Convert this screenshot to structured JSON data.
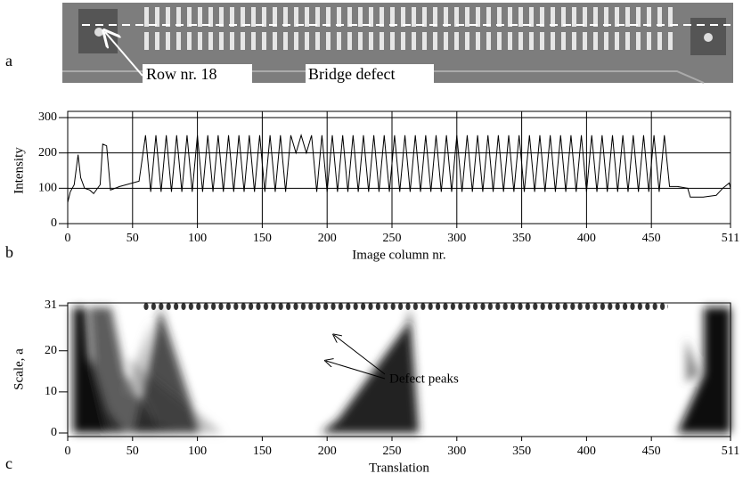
{
  "panel_labels": [
    "a",
    "b",
    "c"
  ],
  "image": {
    "annotations": [
      "Row nr. 18",
      "Bridge defect"
    ]
  },
  "chart_data": [
    {
      "type": "line",
      "ylabel": "Intensity",
      "xlabel": "Image column nr.",
      "color": "#000000",
      "grid": true,
      "xlim": [
        0,
        511
      ],
      "ylim": [
        0,
        300
      ],
      "xticks": [
        0,
        50,
        100,
        150,
        200,
        250,
        300,
        350,
        400,
        450,
        511
      ],
      "yticks": [
        0,
        100,
        200,
        300
      ],
      "x": [
        0,
        2,
        5,
        8,
        10,
        13,
        17,
        20,
        25,
        27,
        30,
        33,
        40,
        45,
        50,
        55,
        60,
        64,
        68,
        72,
        76,
        80,
        84,
        88,
        92,
        96,
        100,
        104,
        108,
        112,
        116,
        120,
        124,
        128,
        132,
        136,
        140,
        144,
        148,
        152,
        156,
        160,
        164,
        168,
        172,
        176,
        180,
        184,
        188,
        192,
        196,
        200,
        204,
        208,
        212,
        216,
        220,
        224,
        228,
        232,
        236,
        240,
        244,
        248,
        252,
        256,
        260,
        264,
        268,
        272,
        276,
        280,
        284,
        288,
        292,
        296,
        300,
        304,
        308,
        312,
        316,
        320,
        324,
        328,
        332,
        336,
        340,
        344,
        348,
        352,
        356,
        360,
        364,
        368,
        372,
        376,
        380,
        384,
        388,
        392,
        396,
        400,
        404,
        408,
        412,
        416,
        420,
        424,
        428,
        432,
        436,
        440,
        444,
        448,
        452,
        456,
        460,
        464,
        470,
        478,
        480,
        490,
        500,
        505,
        510,
        511
      ],
      "values": [
        60,
        90,
        110,
        195,
        130,
        100,
        95,
        85,
        110,
        225,
        220,
        95,
        105,
        110,
        115,
        120,
        250,
        90,
        250,
        90,
        250,
        90,
        250,
        90,
        250,
        90,
        250,
        90,
        250,
        90,
        250,
        90,
        250,
        90,
        250,
        90,
        250,
        90,
        250,
        90,
        250,
        90,
        250,
        90,
        250,
        200,
        250,
        200,
        250,
        90,
        250,
        90,
        250,
        90,
        250,
        90,
        250,
        90,
        250,
        90,
        250,
        90,
        250,
        90,
        250,
        90,
        250,
        90,
        250,
        90,
        250,
        90,
        250,
        90,
        250,
        90,
        250,
        90,
        250,
        90,
        250,
        90,
        250,
        90,
        250,
        90,
        250,
        90,
        250,
        90,
        250,
        90,
        250,
        90,
        250,
        90,
        250,
        90,
        250,
        90,
        250,
        90,
        250,
        90,
        250,
        90,
        250,
        90,
        250,
        90,
        250,
        90,
        250,
        90,
        250,
        90,
        250,
        105,
        105,
        100,
        75,
        75,
        80,
        100,
        115,
        100
      ]
    },
    {
      "type": "scalogram",
      "ylabel": "Scale, a",
      "xlabel": "Translation",
      "annotation": "Defect peaks",
      "xlim": [
        0,
        511
      ],
      "ylim": [
        0,
        31
      ],
      "xticks": [
        0,
        50,
        100,
        150,
        200,
        250,
        300,
        350,
        400,
        450,
        511
      ],
      "yticks": [
        0,
        10,
        20,
        31
      ]
    }
  ]
}
